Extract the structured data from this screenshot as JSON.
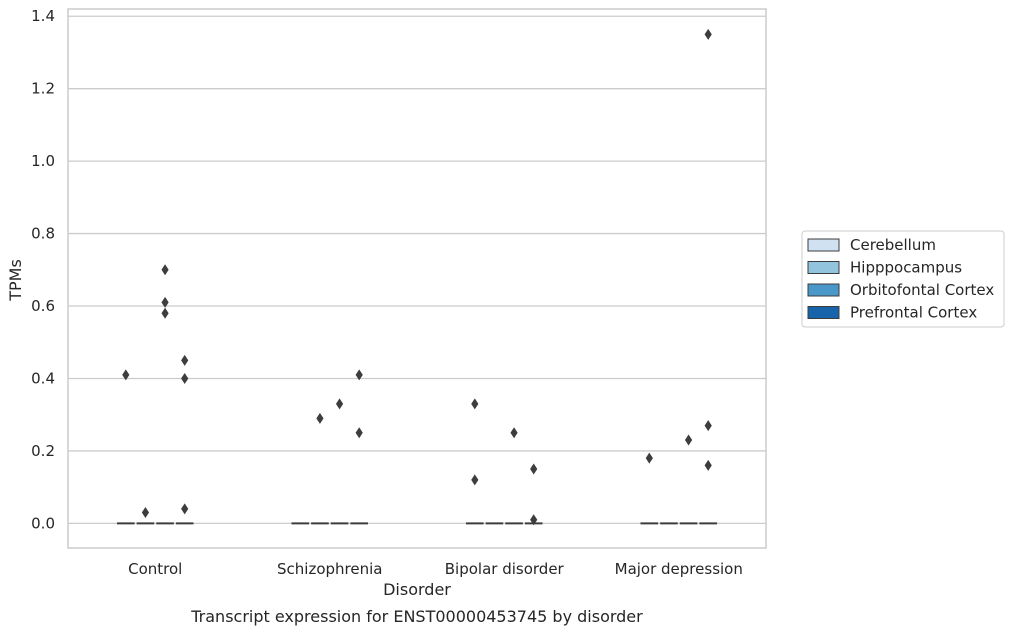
{
  "chart_data": {
    "type": "boxplot",
    "title": "",
    "caption": "Transcript expression for ENST00000453745 by disorder",
    "xlabel": "Disorder",
    "ylabel": "TPMs",
    "ylim": [
      -0.068,
      1.42
    ],
    "yticks": [
      "0.0",
      "0.2",
      "0.4",
      "0.6",
      "0.8",
      "1.0",
      "1.2",
      "1.4"
    ],
    "ytick_values": [
      0,
      0.2,
      0.4,
      0.6,
      0.8,
      1.0,
      1.2,
      1.4
    ],
    "grid": true,
    "legend_position": "right",
    "categories": [
      "Control",
      "Schizophrenia",
      "Bipolar disorder",
      "Major depression"
    ],
    "series": [
      {
        "name": "Cerebellum",
        "color": "#d0e1f2",
        "median": [
          0,
          0,
          0,
          0
        ]
      },
      {
        "name": "Hipppocampus",
        "color": "#93c4de",
        "median": [
          0,
          0,
          0,
          0
        ]
      },
      {
        "name": "Orbitofontal Cortex",
        "color": "#4a98c9",
        "median": [
          0,
          0,
          0,
          0
        ]
      },
      {
        "name": "Prefrontal Cortex",
        "color": "#1764ab",
        "median": [
          0,
          0,
          0,
          0
        ]
      }
    ],
    "outliers": [
      {
        "category": 0,
        "series": 0,
        "values": [
          0.41
        ]
      },
      {
        "category": 0,
        "series": 1,
        "values": [
          0.03
        ]
      },
      {
        "category": 0,
        "series": 2,
        "values": [
          0.7,
          0.61,
          0.58
        ]
      },
      {
        "category": 0,
        "series": 3,
        "values": [
          0.45,
          0.4,
          0.04
        ]
      },
      {
        "category": 1,
        "series": 1,
        "values": [
          0.29
        ]
      },
      {
        "category": 1,
        "series": 2,
        "values": [
          0.33
        ]
      },
      {
        "category": 1,
        "series": 3,
        "values": [
          0.41,
          0.25
        ]
      },
      {
        "category": 2,
        "series": 0,
        "values": [
          0.33,
          0.12
        ]
      },
      {
        "category": 2,
        "series": 2,
        "values": [
          0.25
        ]
      },
      {
        "category": 2,
        "series": 3,
        "values": [
          0.15,
          0.01
        ]
      },
      {
        "category": 3,
        "series": 0,
        "values": [
          0.18
        ]
      },
      {
        "category": 3,
        "series": 2,
        "values": [
          0.23
        ]
      },
      {
        "category": 3,
        "series": 3,
        "values": [
          1.35,
          0.27,
          0.16
        ]
      }
    ]
  }
}
